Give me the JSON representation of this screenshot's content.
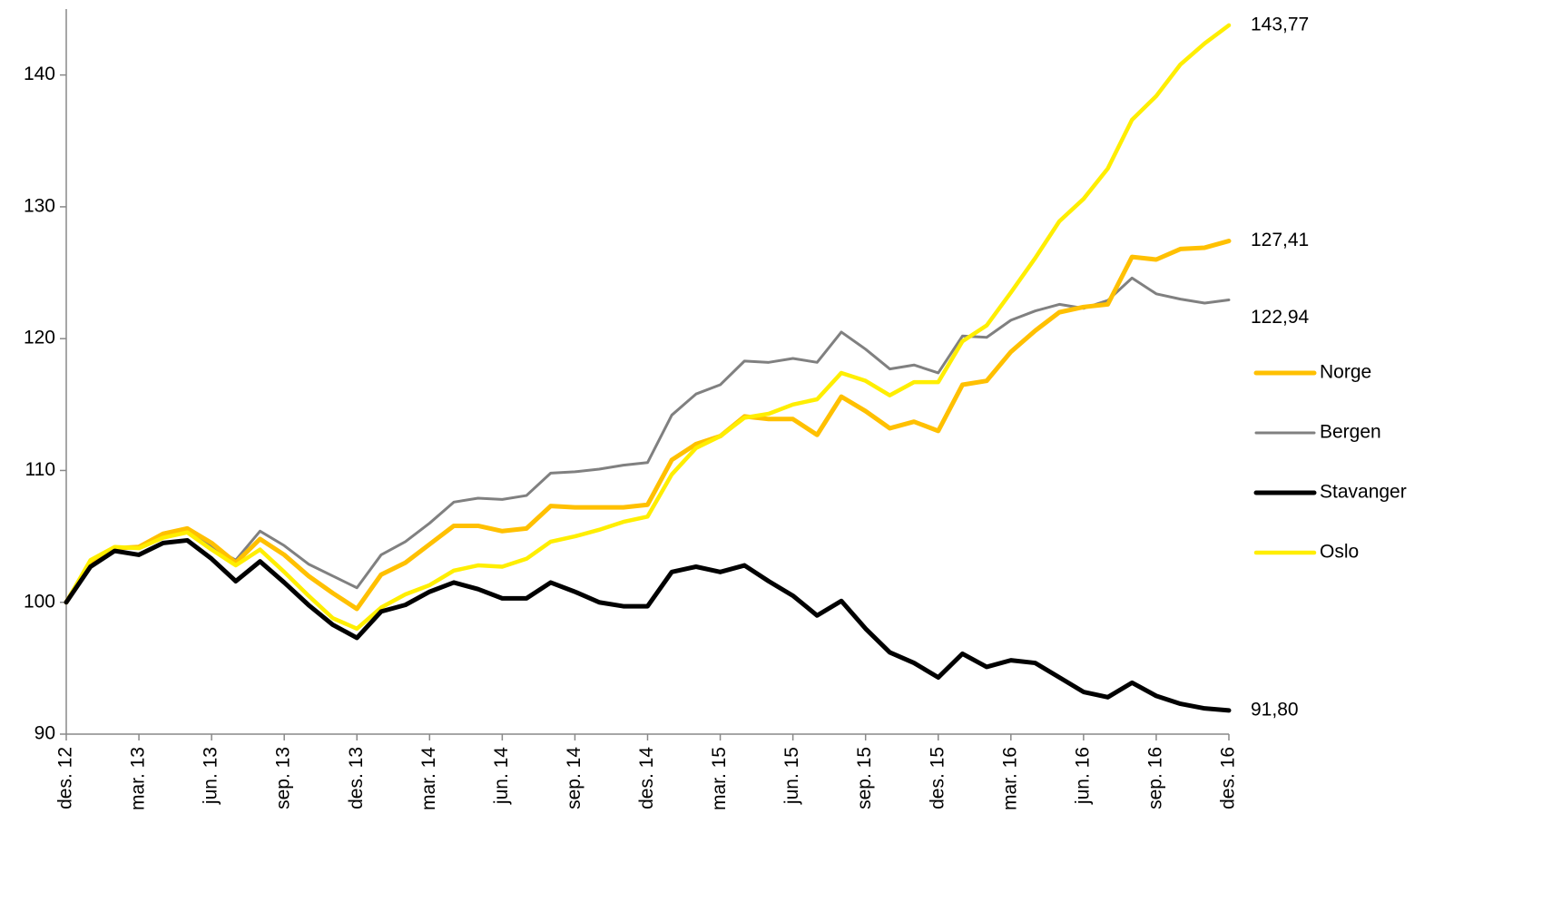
{
  "chart_data": {
    "type": "line",
    "categories": [
      "des. 12",
      null,
      null,
      "mar. 13",
      null,
      null,
      "jun. 13",
      null,
      null,
      "sep. 13",
      null,
      null,
      "des. 13",
      null,
      null,
      "mar. 14",
      null,
      null,
      "jun. 14",
      null,
      null,
      "sep. 14",
      null,
      null,
      "des. 14",
      null,
      null,
      "mar. 15",
      null,
      null,
      "jun. 15",
      null,
      null,
      "sep. 15",
      null,
      null,
      "des. 15",
      null,
      null,
      "mar. 16",
      null,
      null,
      "jun. 16",
      null,
      null,
      "sep. 16",
      null,
      null,
      "des. 16"
    ],
    "series": [
      {
        "name": "Bergen",
        "color": "#808080",
        "values": [
          100,
          103,
          104,
          104.2,
          105,
          105.3,
          104.2,
          103.2,
          105.4,
          104.3,
          102.9,
          102,
          101.1,
          103.6,
          104.6,
          106,
          107.6,
          107.9,
          107.8,
          108.1,
          109.8,
          109.9,
          110.1,
          110.4,
          110.6,
          114.2,
          115.8,
          116.5,
          118.3,
          118.2,
          118.5,
          118.2,
          120.5,
          119.2,
          117.7,
          118,
          117.4,
          120.2,
          120.1,
          121.4,
          122.1,
          122.6,
          122.3,
          122.9,
          124.6,
          123.4,
          123,
          122.7,
          122.94
        ],
        "value_labels": [
          null,
          null,
          null,
          null,
          null,
          null,
          null,
          null,
          null,
          null,
          null,
          null,
          null,
          null,
          null,
          null,
          null,
          null,
          null,
          null,
          null,
          null,
          null,
          null,
          null,
          null,
          null,
          null,
          null,
          null,
          null,
          null,
          null,
          null,
          null,
          null,
          null,
          null,
          null,
          null,
          null,
          null,
          null,
          null,
          null,
          null,
          null,
          null,
          "122,94"
        ]
      },
      {
        "name": "Norge",
        "color": "#FFC000",
        "values": [
          100,
          103,
          104.1,
          104.2,
          105.2,
          105.6,
          104.5,
          103,
          104.8,
          103.6,
          102,
          100.7,
          99.5,
          102.1,
          103,
          104.4,
          105.8,
          105.8,
          105.4,
          105.6,
          107.3,
          107.2,
          107.2,
          107.2,
          107.4,
          110.8,
          112,
          112.6,
          114.1,
          113.9,
          113.9,
          112.7,
          115.6,
          114.5,
          113.2,
          113.7,
          113,
          116.5,
          116.8,
          119,
          120.6,
          122,
          122.4,
          122.6,
          126.2,
          126,
          126.8,
          126.9,
          127.41
        ],
        "value_labels": [
          null,
          null,
          null,
          null,
          null,
          null,
          null,
          null,
          null,
          null,
          null,
          null,
          null,
          null,
          null,
          null,
          null,
          null,
          null,
          null,
          null,
          null,
          null,
          null,
          null,
          null,
          null,
          null,
          null,
          null,
          null,
          null,
          null,
          null,
          null,
          null,
          null,
          null,
          null,
          null,
          null,
          null,
          null,
          null,
          null,
          null,
          null,
          null,
          "127,41"
        ]
      },
      {
        "name": "Oslo",
        "color": "#FFEE00",
        "values": [
          100,
          103.2,
          104.2,
          104.1,
          104.9,
          105.3,
          104,
          102.8,
          104,
          102.3,
          100.5,
          98.8,
          98,
          99.6,
          100.6,
          101.3,
          102.4,
          102.8,
          102.7,
          103.3,
          104.6,
          105,
          105.5,
          106.1,
          106.5,
          109.7,
          111.7,
          112.6,
          114,
          114.3,
          115,
          115.4,
          117.4,
          116.8,
          115.7,
          116.7,
          116.7,
          119.8,
          121,
          123.5,
          126.1,
          128.9,
          130.6,
          132.9,
          136.6,
          138.4,
          140.8,
          142.4,
          143.77
        ],
        "value_labels": [
          null,
          null,
          null,
          null,
          null,
          null,
          null,
          null,
          null,
          null,
          null,
          null,
          null,
          null,
          null,
          null,
          null,
          null,
          null,
          null,
          null,
          null,
          null,
          null,
          null,
          null,
          null,
          null,
          null,
          null,
          null,
          null,
          null,
          null,
          null,
          null,
          null,
          null,
          null,
          null,
          null,
          null,
          null,
          null,
          null,
          null,
          null,
          null,
          "143,77"
        ]
      },
      {
        "name": "Stavanger",
        "color": "#000000",
        "values": [
          100,
          102.7,
          103.9,
          103.6,
          104.5,
          104.7,
          103.3,
          101.6,
          103.1,
          101.5,
          99.8,
          98.3,
          97.3,
          99.3,
          99.8,
          100.8,
          101.5,
          101,
          100.3,
          100.3,
          101.5,
          100.8,
          100,
          99.7,
          99.7,
          102.3,
          102.7,
          102.3,
          102.8,
          101.6,
          100.5,
          99,
          100.1,
          98,
          96.2,
          95.4,
          94.3,
          96.1,
          95.1,
          95.6,
          95.4,
          94.3,
          93.2,
          92.8,
          93.9,
          92.9,
          92.3,
          91.95,
          91.8
        ],
        "value_labels": [
          null,
          null,
          null,
          null,
          null,
          null,
          null,
          null,
          null,
          null,
          null,
          null,
          null,
          null,
          null,
          null,
          null,
          null,
          null,
          null,
          null,
          null,
          null,
          null,
          null,
          null,
          null,
          null,
          null,
          null,
          null,
          null,
          null,
          null,
          null,
          null,
          null,
          null,
          null,
          null,
          null,
          null,
          null,
          null,
          null,
          null,
          null,
          null,
          "91,80"
        ]
      }
    ],
    "ylim": [
      90,
      145
    ],
    "yticks": [
      90,
      100,
      110,
      120,
      130,
      140
    ],
    "legend_order": [
      "Norge",
      "Bergen",
      "Stavanger",
      "Oslo"
    ]
  }
}
